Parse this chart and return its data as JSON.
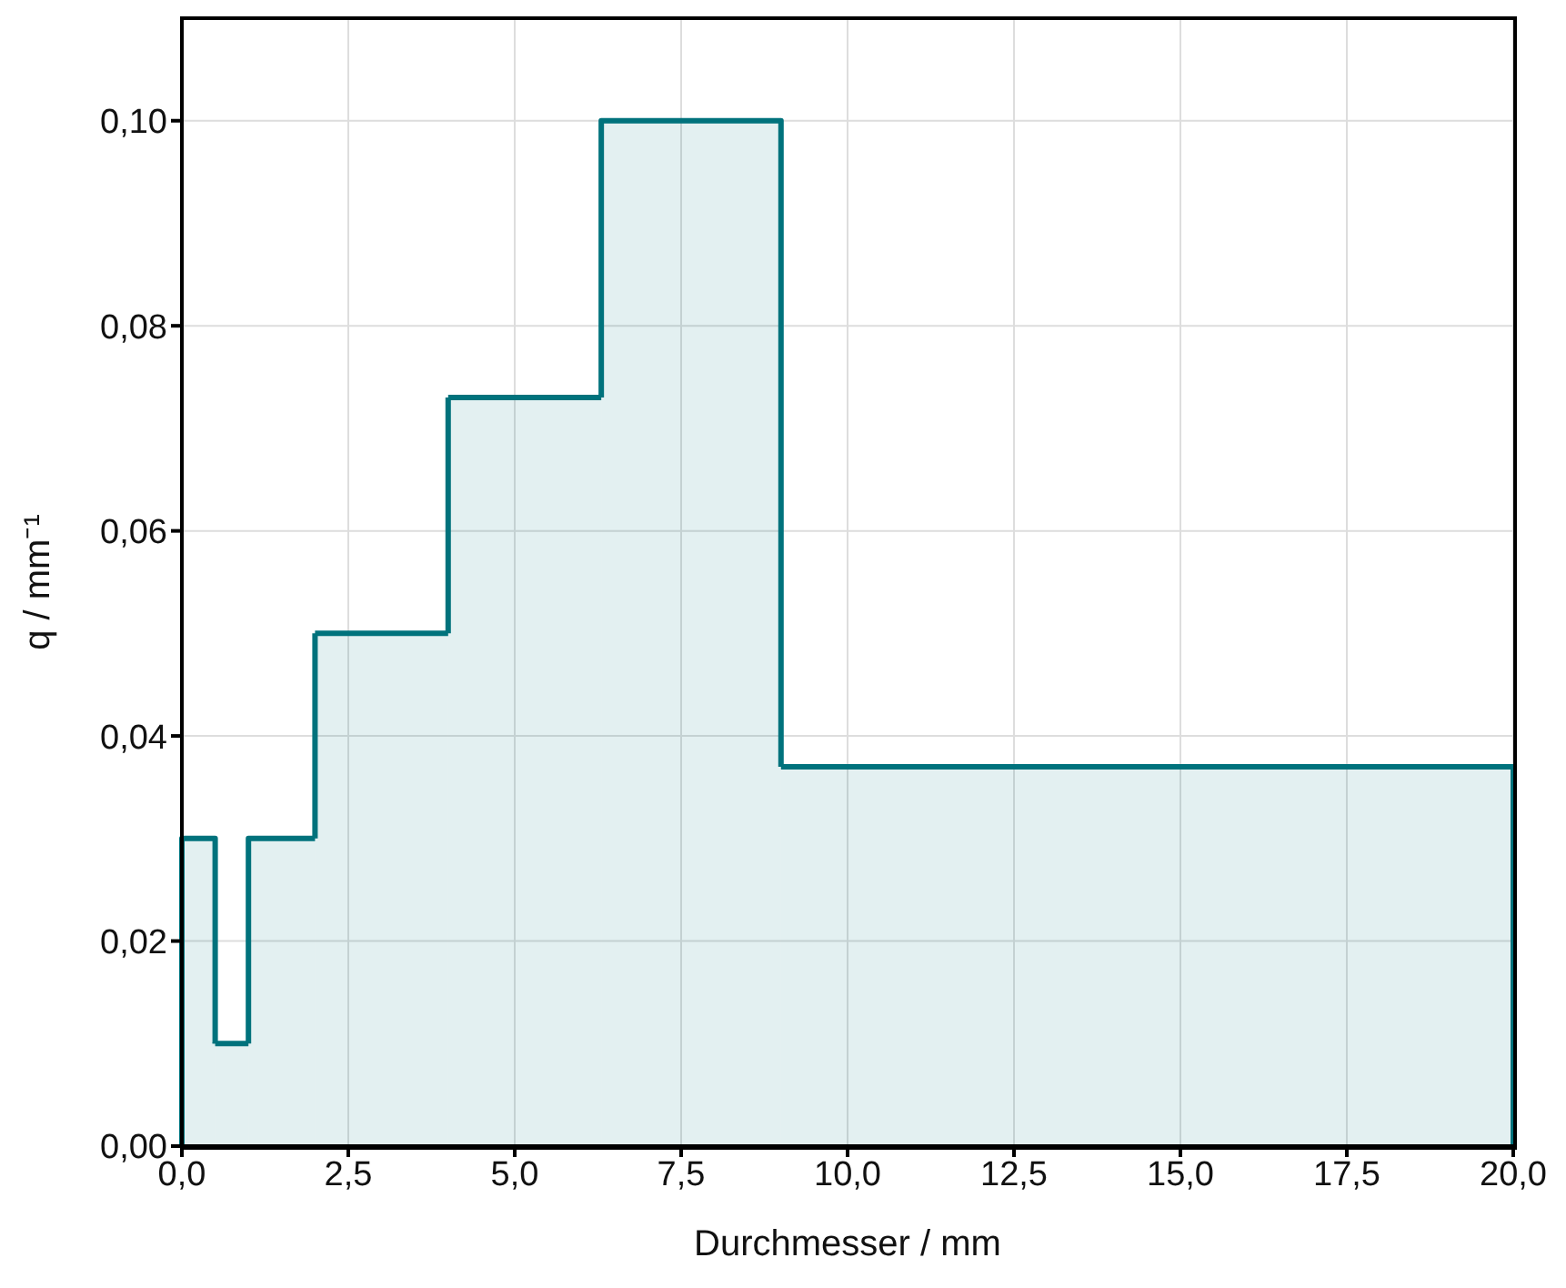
{
  "chart_data": {
    "type": "histogram",
    "xlabel": "Durchmesser / mm",
    "ylabel": "q / mm⁻¹",
    "bins": [
      0,
      0.5,
      1,
      2,
      4,
      6.3,
      9,
      20
    ],
    "values": [
      0.03,
      0.01,
      0.03,
      0.05,
      0.073,
      0.1,
      0.037
    ],
    "color": "#00727c",
    "xlim": [
      0,
      20
    ],
    "ylim": [
      0,
      0.11
    ],
    "xticks": [
      {
        "value": 0,
        "label": "0,0"
      },
      {
        "value": 2.5,
        "label": "2,5"
      },
      {
        "value": 5,
        "label": "5,0"
      },
      {
        "value": 7.5,
        "label": "7,5"
      },
      {
        "value": 10,
        "label": "10,0"
      },
      {
        "value": 12.5,
        "label": "12,5"
      },
      {
        "value": 15,
        "label": "15,0"
      },
      {
        "value": 17.5,
        "label": "17,5"
      },
      {
        "value": 20,
        "label": "20,0"
      }
    ],
    "yticks": [
      {
        "value": 0,
        "label": "0,00"
      },
      {
        "value": 0.02,
        "label": "0,02"
      },
      {
        "value": 0.04,
        "label": "0,04"
      },
      {
        "value": 0.06,
        "label": "0,06"
      },
      {
        "value": 0.08,
        "label": "0,08"
      },
      {
        "value": 0.1,
        "label": "0,10"
      }
    ],
    "grid": true
  }
}
